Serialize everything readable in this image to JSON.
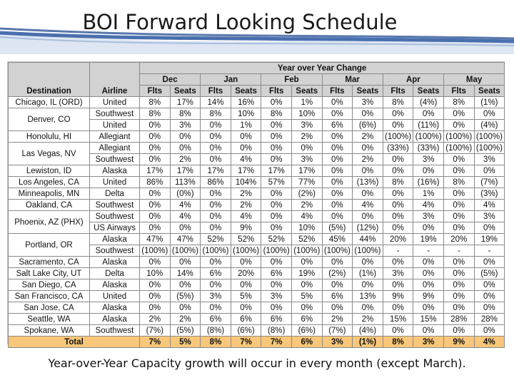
{
  "slide": {
    "title": "BOI Forward Looking Schedule",
    "caption": "Year-over-Year Capacity growth will occur in every month (except March)."
  },
  "table": {
    "group_header": "Year over Year Change",
    "col_destination": "Destination",
    "col_airline": "Airline",
    "months": [
      "Dec",
      "Jan",
      "Feb",
      "Mar",
      "Apr",
      "May"
    ],
    "sub_flts": "Flts",
    "sub_seats": "Seats",
    "rows": [
      {
        "dest": "Chicago, IL (ORD)",
        "airline": "United",
        "v": [
          "8%",
          "17%",
          "14%",
          "16%",
          "0%",
          "1%",
          "0%",
          "3%",
          "8%",
          "(4%)",
          "8%",
          "(1%)"
        ]
      },
      {
        "dest": "Denver, CO",
        "airline": "Southwest",
        "v": [
          "8%",
          "8%",
          "8%",
          "10%",
          "8%",
          "10%",
          "0%",
          "0%",
          "0%",
          "0%",
          "0%",
          "0%"
        ]
      },
      {
        "airline": "United",
        "v": [
          "0%",
          "3%",
          "0%",
          "1%",
          "0%",
          "3%",
          "6%",
          "(6%)",
          "0%",
          "(11%)",
          "0%",
          "(4%)"
        ]
      },
      {
        "dest": "Honolulu, HI",
        "airline": "Allegiant",
        "v": [
          "0%",
          "0%",
          "0%",
          "0%",
          "0%",
          "2%",
          "0%",
          "2%",
          "(100%)",
          "(100%)",
          "(100%)",
          "(100%)"
        ]
      },
      {
        "dest": "Las Vegas, NV",
        "airline": "Allegiant",
        "v": [
          "0%",
          "0%",
          "0%",
          "0%",
          "0%",
          "0%",
          "0%",
          "0%",
          "(33%)",
          "(33%)",
          "(100%)",
          "(100%)"
        ]
      },
      {
        "airline": "Southwest",
        "v": [
          "0%",
          "2%",
          "0%",
          "4%",
          "0%",
          "3%",
          "0%",
          "2%",
          "0%",
          "3%",
          "0%",
          "3%"
        ]
      },
      {
        "dest": "Lewiston, ID",
        "airline": "Alaska",
        "v": [
          "17%",
          "17%",
          "17%",
          "17%",
          "17%",
          "17%",
          "0%",
          "0%",
          "0%",
          "0%",
          "0%",
          "0%"
        ]
      },
      {
        "dest": "Los Angeles, CA",
        "airline": "United",
        "v": [
          "86%",
          "113%",
          "86%",
          "104%",
          "57%",
          "77%",
          "0%",
          "(13%)",
          "8%",
          "(16%)",
          "8%",
          "(7%)"
        ]
      },
      {
        "dest": "Minneapolis, MN",
        "airline": "Delta",
        "v": [
          "0%",
          "(0%)",
          "0%",
          "2%",
          "0%",
          "(2%)",
          "0%",
          "0%",
          "0%",
          "1%",
          "0%",
          "(3%)"
        ]
      },
      {
        "dest": "Oakland, CA",
        "airline": "Southwest",
        "v": [
          "0%",
          "4%",
          "0%",
          "2%",
          "0%",
          "2%",
          "0%",
          "4%",
          "0%",
          "4%",
          "0%",
          "4%"
        ]
      },
      {
        "dest": "Phoenix, AZ (PHX)",
        "airline": "Southwest",
        "v": [
          "0%",
          "4%",
          "0%",
          "4%",
          "0%",
          "4%",
          "0%",
          "0%",
          "0%",
          "3%",
          "0%",
          "3%"
        ]
      },
      {
        "airline": "US Airways",
        "v": [
          "0%",
          "0%",
          "0%",
          "9%",
          "0%",
          "10%",
          "(5%)",
          "(12%)",
          "0%",
          "0%",
          "0%",
          "0%"
        ]
      },
      {
        "dest": "Portland, OR",
        "airline": "Alaska",
        "v": [
          "47%",
          "47%",
          "52%",
          "52%",
          "52%",
          "52%",
          "45%",
          "44%",
          "20%",
          "19%",
          "20%",
          "19%"
        ]
      },
      {
        "airline": "Southwest",
        "v": [
          "(100%)",
          "(100%)",
          "(100%)",
          "(100%)",
          "(100%)",
          "(100%)",
          "(100%)",
          "(100%)",
          "-",
          "-",
          "-",
          "-"
        ]
      },
      {
        "dest": "Sacramento, CA",
        "airline": "Alaska",
        "v": [
          "0%",
          "0%",
          "0%",
          "0%",
          "0%",
          "0%",
          "0%",
          "0%",
          "0%",
          "0%",
          "0%",
          "0%"
        ]
      },
      {
        "dest": "Salt Lake City, UT",
        "airline": "Delta",
        "v": [
          "10%",
          "14%",
          "6%",
          "20%",
          "6%",
          "19%",
          "(2%)",
          "(1%)",
          "3%",
          "0%",
          "0%",
          "(5%)"
        ]
      },
      {
        "dest": "San Diego, CA",
        "airline": "Alaska",
        "v": [
          "0%",
          "0%",
          "0%",
          "0%",
          "0%",
          "0%",
          "0%",
          "0%",
          "0%",
          "0%",
          "0%",
          "0%"
        ]
      },
      {
        "dest": "San Francisco, CA",
        "airline": "United",
        "v": [
          "0%",
          "(5%)",
          "3%",
          "5%",
          "3%",
          "5%",
          "6%",
          "13%",
          "9%",
          "9%",
          "0%",
          "0%"
        ]
      },
      {
        "dest": "San Jose, CA",
        "airline": "Alaska",
        "v": [
          "0%",
          "0%",
          "0%",
          "0%",
          "0%",
          "0%",
          "0%",
          "0%",
          "0%",
          "0%",
          "0%",
          "0%"
        ]
      },
      {
        "dest": "Seattle, WA",
        "airline": "Alaska",
        "v": [
          "2%",
          "2%",
          "6%",
          "6%",
          "6%",
          "6%",
          "2%",
          "2%",
          "15%",
          "15%",
          "28%",
          "28%"
        ]
      },
      {
        "dest": "Spokane, WA",
        "airline": "Southwest",
        "v": [
          "(7%)",
          "(5%)",
          "(8%)",
          "(6%)",
          "(8%)",
          "(6%)",
          "(7%)",
          "(4%)",
          "0%",
          "0%",
          "0%",
          "0%"
        ]
      }
    ],
    "total": {
      "label": "Total",
      "v": [
        "7%",
        "5%",
        "8%",
        "7%",
        "7%",
        "6%",
        "3%",
        "(1%)",
        "8%",
        "3%",
        "9%",
        "4%"
      ]
    }
  }
}
